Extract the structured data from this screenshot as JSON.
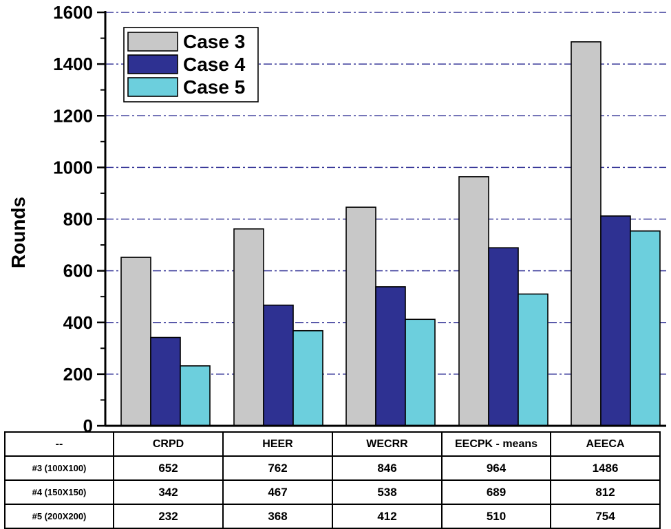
{
  "chart_data": {
    "type": "bar",
    "ylabel": "Rounds",
    "ylim": [
      0,
      1600
    ],
    "yticks": [
      0,
      200,
      400,
      600,
      800,
      1000,
      1200,
      1400,
      1600
    ],
    "grid": "horizontal dash-dot",
    "legend_position": "top-left",
    "categories": [
      "CRPD",
      "HEER",
      "WECRR",
      "EECPK - means",
      "AEECA"
    ],
    "series": [
      {
        "name": "Case 3",
        "color": "#c8c8c8",
        "values": [
          652,
          762,
          846,
          964,
          1486
        ]
      },
      {
        "name": "Case 4",
        "color": "#2e3192",
        "values": [
          342,
          467,
          538,
          689,
          812
        ]
      },
      {
        "name": "Case 5",
        "color": "#6ccfdd",
        "values": [
          232,
          368,
          412,
          510,
          754
        ]
      }
    ]
  },
  "table": {
    "corner": "--",
    "columns": [
      "CRPD",
      "HEER",
      "WECRR",
      "EECPK - means",
      "AEECA"
    ],
    "rows": [
      {
        "label": "#3 (100X100)",
        "values": [
          "652",
          "762",
          "846",
          "964",
          "1486"
        ]
      },
      {
        "label": "#4 (150X150)",
        "values": [
          "342",
          "467",
          "538",
          "689",
          "812"
        ]
      },
      {
        "label": "#5 (200X200)",
        "values": [
          "232",
          "368",
          "412",
          "510",
          "754"
        ]
      }
    ]
  }
}
